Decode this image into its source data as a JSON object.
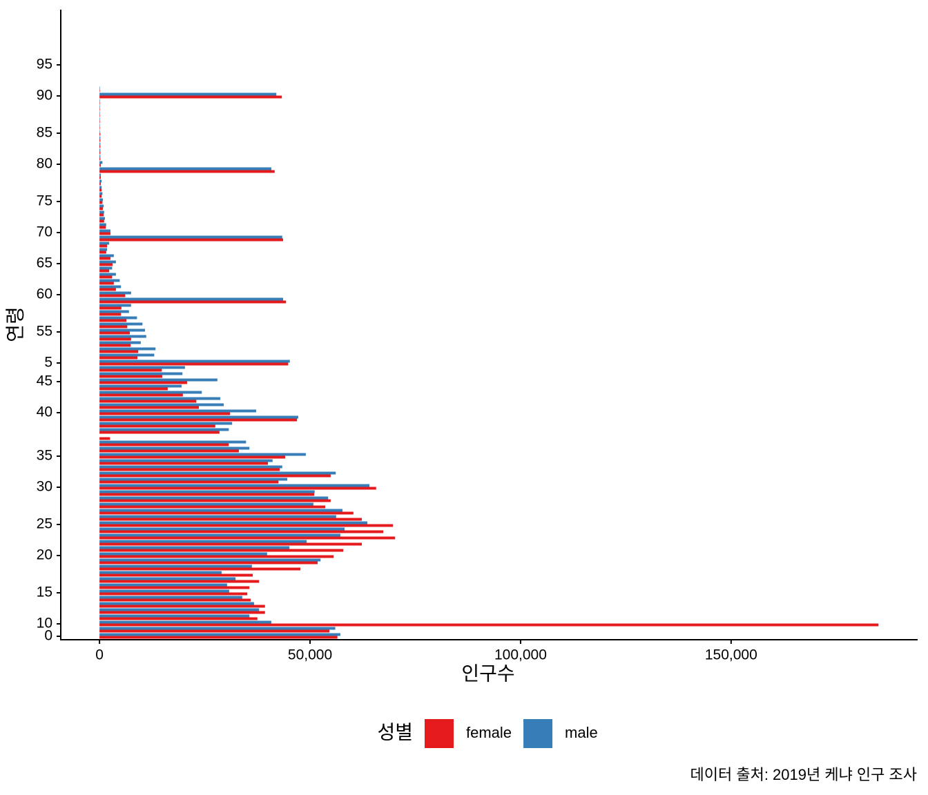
{
  "chart_data": {
    "type": "barh",
    "xlabel": "인구수",
    "ylabel": "연령",
    "legend_title": "성별",
    "caption": "데이터 출처: 2019년 케냐 인구 조사",
    "xlim": [
      -9200,
      194300
    ],
    "xticks": [
      0,
      {
        "value": 50000,
        "label": "50,000"
      },
      {
        "value": 100000,
        "label": "100,000"
      },
      {
        "value": 150000,
        "label": "150,000"
      }
    ],
    "categories": [
      "0",
      null,
      "10",
      null,
      null,
      null,
      null,
      "15",
      null,
      null,
      null,
      null,
      null,
      "20",
      null,
      null,
      null,
      null,
      "25",
      null,
      null,
      null,
      null,
      null,
      "30",
      null,
      null,
      null,
      null,
      "35",
      null,
      null,
      null,
      null,
      null,
      null,
      "40",
      null,
      null,
      null,
      null,
      "45",
      null,
      null,
      "5",
      null,
      null,
      null,
      null,
      "55",
      null,
      null,
      null,
      null,
      null,
      "60",
      null,
      null,
      null,
      null,
      "65",
      null,
      null,
      null,
      null,
      "70",
      null,
      null,
      null,
      null,
      "75",
      null,
      null,
      null,
      null,
      null,
      "80",
      null,
      null,
      null,
      null,
      "85",
      null,
      null,
      null,
      null,
      null,
      "90",
      null,
      null,
      null,
      null,
      "95"
    ],
    "series": [
      {
        "name": "female",
        "color": "#e41a1c",
        "values": [
          56500,
          54600,
          185000,
          37500,
          39300,
          39300,
          35900,
          35100,
          35600,
          37900,
          36400,
          47700,
          51800,
          55600,
          57900,
          62300,
          70200,
          67400,
          69700,
          62300,
          60300,
          53600,
          54900,
          51000,
          65700,
          42500,
          54900,
          42800,
          40000,
          44100,
          33100,
          30700,
          2500,
          28500,
          27500,
          46900,
          31000,
          23600,
          23000,
          19800,
          16200,
          20800,
          14900,
          14800,
          44800,
          9000,
          9200,
          7400,
          7500,
          7200,
          6600,
          6400,
          5100,
          5200,
          44300,
          6100,
          3900,
          3400,
          3000,
          2300,
          3100,
          2600,
          1600,
          1800,
          43600,
          2600,
          1500,
          1100,
          1000,
          800,
          700,
          500,
          500,
          300,
          300,
          41600,
          300,
          200,
          200,
          200,
          200,
          200,
          100,
          100,
          100,
          100,
          100,
          43300,
          100,
          null,
          null,
          null,
          null
        ]
      },
      {
        "name": "male",
        "color": "#377eb8",
        "values": [
          57200,
          56000,
          40800,
          35600,
          37900,
          36700,
          33900,
          30800,
          30300,
          32300,
          29000,
          36200,
          52500,
          39800,
          45100,
          49200,
          57200,
          58200,
          63600,
          56200,
          57700,
          50800,
          54300,
          51100,
          64100,
          44600,
          56100,
          43400,
          41100,
          49000,
          35600,
          34800,
          null,
          30700,
          31500,
          47200,
          37200,
          29500,
          28700,
          24300,
          19500,
          28000,
          19700,
          20300,
          45200,
          13000,
          13300,
          9800,
          11100,
          10800,
          10200,
          8900,
          7000,
          7500,
          43600,
          7500,
          5100,
          4800,
          3900,
          3000,
          3900,
          3400,
          1800,
          2300,
          43400,
          2600,
          1600,
          1300,
          1100,
          1000,
          800,
          700,
          500,
          500,
          300,
          40800,
          700,
          200,
          200,
          200,
          200,
          100,
          100,
          100,
          100,
          100,
          100,
          42000,
          100,
          null,
          null,
          null,
          null
        ]
      }
    ]
  }
}
